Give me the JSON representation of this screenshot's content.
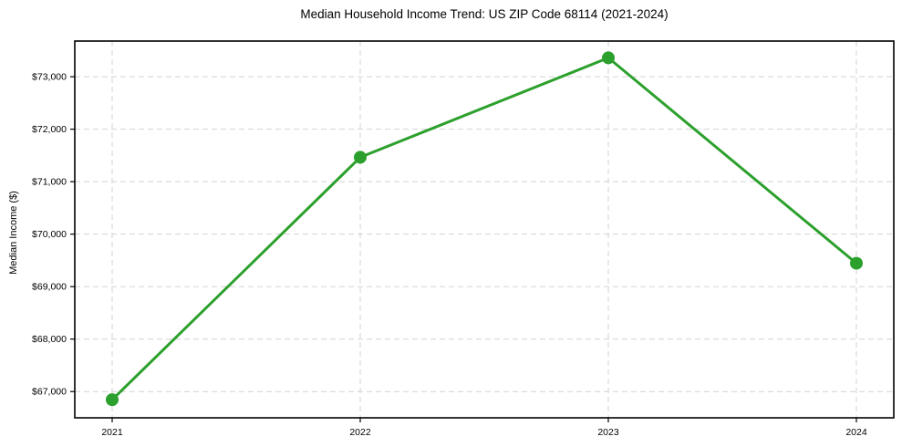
{
  "chart_data": {
    "type": "line",
    "title": "Median Household Income Trend: US ZIP Code 68114 (2021-2024)",
    "xlabel": "",
    "ylabel": "Median Income ($)",
    "x": [
      2021,
      2022,
      2023,
      2024
    ],
    "x_tick_labels": [
      "2021",
      "2022",
      "2023",
      "2024"
    ],
    "series": [
      {
        "name": "Median Household Income",
        "values": [
          66845,
          71465,
          73360,
          69445
        ],
        "color": "#2ca02c",
        "marker": "circle"
      }
    ],
    "y_ticks": [
      67000,
      68000,
      69000,
      70000,
      71000,
      72000,
      73000
    ],
    "y_tick_labels": [
      "$67,000",
      "$68,000",
      "$69,000",
      "$70,000",
      "$71,000",
      "$72,000",
      "$73,000"
    ],
    "ylim": [
      66500,
      73680
    ],
    "grid": "dashed",
    "grid_color": "#d3d3d3",
    "spine_color": "#000000",
    "background_color": "#ffffff",
    "legend_position": "none"
  }
}
